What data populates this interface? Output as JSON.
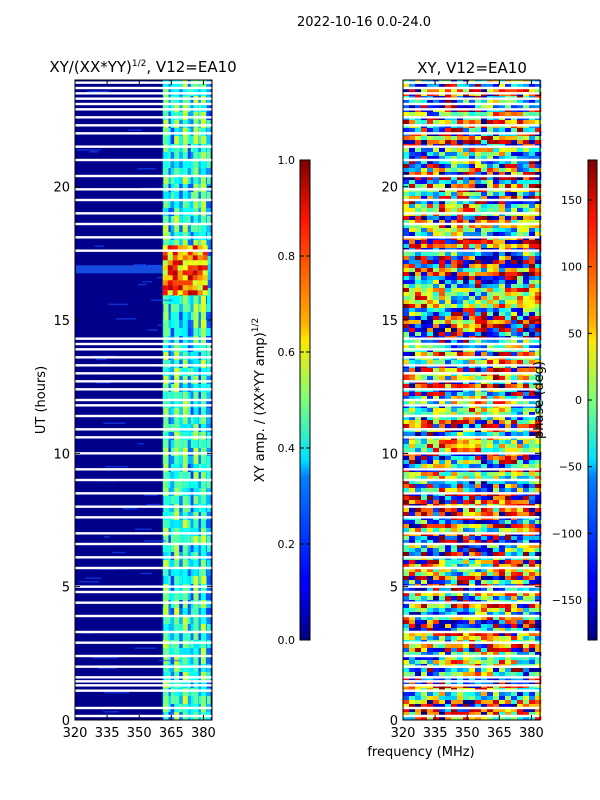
{
  "figure_title": "2022-10-16 0.0-24.0",
  "x_common_label": "frequency (MHz)",
  "chart_data": [
    {
      "type": "heatmap",
      "title": "XY/(XX*YY)^{1/2}, V12=EA10",
      "title_main": "XY/(XX*YY)",
      "title_exp": "1/2",
      "title_tail": ", V12=EA10",
      "xlabel": "",
      "ylabel": "UT (hours)",
      "xlim": [
        320,
        384
      ],
      "ylim": [
        0,
        24
      ],
      "xticks": [
        320,
        335,
        350,
        365,
        380
      ],
      "yticks": [
        0,
        5,
        10,
        15,
        20
      ],
      "data_band_mhz": [
        361,
        382
      ],
      "bright_channels_mhz": [
        362.5,
        367.5,
        371.5,
        376.5,
        380.0
      ],
      "high_amplitude_interval_hours": [
        16.0,
        17.8
      ],
      "colorbar": {
        "label": "XY amp. / (XX*YY amp)^{1/2}",
        "label_main": "XY amp. / (XX*YY amp)",
        "label_exp": "1/2",
        "range": [
          0.0,
          1.0
        ],
        "ticks": [
          "0.0",
          "0.2",
          "0.4",
          "0.6",
          "0.8",
          "1.0"
        ]
      }
    },
    {
      "type": "heatmap",
      "title": "XY, V12=EA10",
      "xlabel": "frequency (MHz)",
      "ylabel": "",
      "xlim": [
        320,
        384
      ],
      "ylim": [
        0,
        24
      ],
      "xticks": [
        320,
        335,
        350,
        365,
        380
      ],
      "yticks": [
        0,
        5,
        10,
        15,
        20
      ],
      "colorbar": {
        "label": "phase (deg)",
        "range": [
          -180,
          180
        ],
        "ticks": [
          "−150",
          "−100",
          "−50",
          "0",
          "50",
          "100",
          "150"
        ]
      }
    }
  ],
  "flagged_rows_hours": [
    0.15,
    0.45,
    1.1,
    1.3,
    1.45,
    1.6,
    2.0,
    2.4,
    2.9,
    3.3,
    3.9,
    4.4,
    4.8,
    5.0,
    5.7,
    6.1,
    6.6,
    7.0,
    7.6,
    8.0,
    8.5,
    9.0,
    9.4,
    10.0,
    10.6,
    10.9,
    11.4,
    11.8,
    12.0,
    12.4,
    12.7,
    13.0,
    13.3,
    13.6,
    13.9,
    14.1,
    14.3,
    17.6,
    18.1,
    18.6,
    19.0,
    19.5,
    19.9,
    20.4,
    21.0,
    21.5,
    22.0,
    22.3,
    22.6,
    22.9,
    23.1,
    23.3,
    23.5,
    23.7,
    23.9
  ]
}
